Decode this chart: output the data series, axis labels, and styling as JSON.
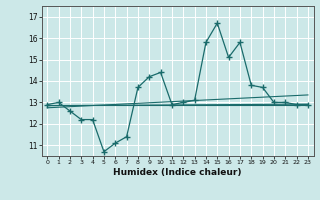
{
  "title": "",
  "xlabel": "Humidex (Indice chaleur)",
  "bg_color": "#cce8e8",
  "line_color": "#1a6b6b",
  "grid_color": "#ffffff",
  "xlim": [
    -0.5,
    23.5
  ],
  "ylim": [
    10.5,
    17.5
  ],
  "yticks": [
    11,
    12,
    13,
    14,
    15,
    16,
    17
  ],
  "xticks": [
    0,
    1,
    2,
    3,
    4,
    5,
    6,
    7,
    8,
    9,
    10,
    11,
    12,
    13,
    14,
    15,
    16,
    17,
    18,
    19,
    20,
    21,
    22,
    23
  ],
  "series0_x": [
    0,
    1,
    2,
    3,
    4,
    5,
    6,
    7,
    8,
    9,
    10,
    11,
    12,
    13,
    14,
    15,
    16,
    17,
    18,
    19,
    20,
    21,
    22,
    23
  ],
  "series0_y": [
    12.9,
    13.0,
    12.6,
    12.2,
    12.2,
    10.7,
    11.1,
    11.4,
    13.7,
    14.2,
    14.4,
    12.9,
    13.0,
    13.1,
    15.8,
    16.7,
    15.1,
    15.8,
    13.8,
    13.7,
    13.0,
    13.0,
    12.9,
    12.9
  ],
  "trend1_x": [
    0,
    23
  ],
  "trend1_y": [
    12.9,
    12.9
  ],
  "trend2_x": [
    0,
    23
  ],
  "trend2_y": [
    12.85,
    12.92
  ],
  "trend3_x": [
    0,
    23
  ],
  "trend3_y": [
    12.75,
    13.35
  ]
}
